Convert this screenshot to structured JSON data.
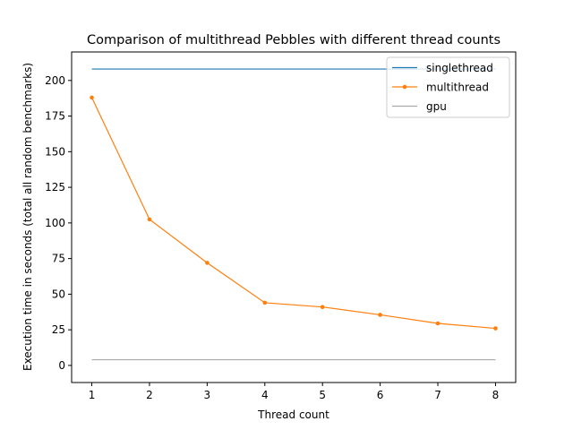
{
  "chart_data": {
    "type": "line",
    "title": "Comparison of multithread Pebbles with different thread counts",
    "xlabel": "Thread count",
    "ylabel": "Execution time in seconds (total all random benchmarks)",
    "x": [
      1,
      2,
      3,
      4,
      5,
      6,
      7,
      8
    ],
    "xlim": [
      0.65,
      8.35
    ],
    "ylim": [
      -12,
      220
    ],
    "xticks": [
      1,
      2,
      3,
      4,
      5,
      6,
      7,
      8
    ],
    "yticks": [
      0,
      25,
      50,
      75,
      100,
      125,
      150,
      175,
      200
    ],
    "grid": false,
    "legend_position": "top-right",
    "series": [
      {
        "name": "singlethread",
        "color": "#1f77b4",
        "markers": false,
        "values": [
          208,
          208,
          208,
          208,
          208,
          208,
          208,
          208
        ]
      },
      {
        "name": "multithread",
        "color": "#ff7f0e",
        "markers": true,
        "values": [
          188,
          102.5,
          72,
          44,
          41,
          35.5,
          29.5,
          26
        ]
      },
      {
        "name": "gpu",
        "color": "#a9a9a9",
        "markers": false,
        "values": [
          4,
          4,
          4,
          4,
          4,
          4,
          4,
          4
        ]
      }
    ]
  }
}
